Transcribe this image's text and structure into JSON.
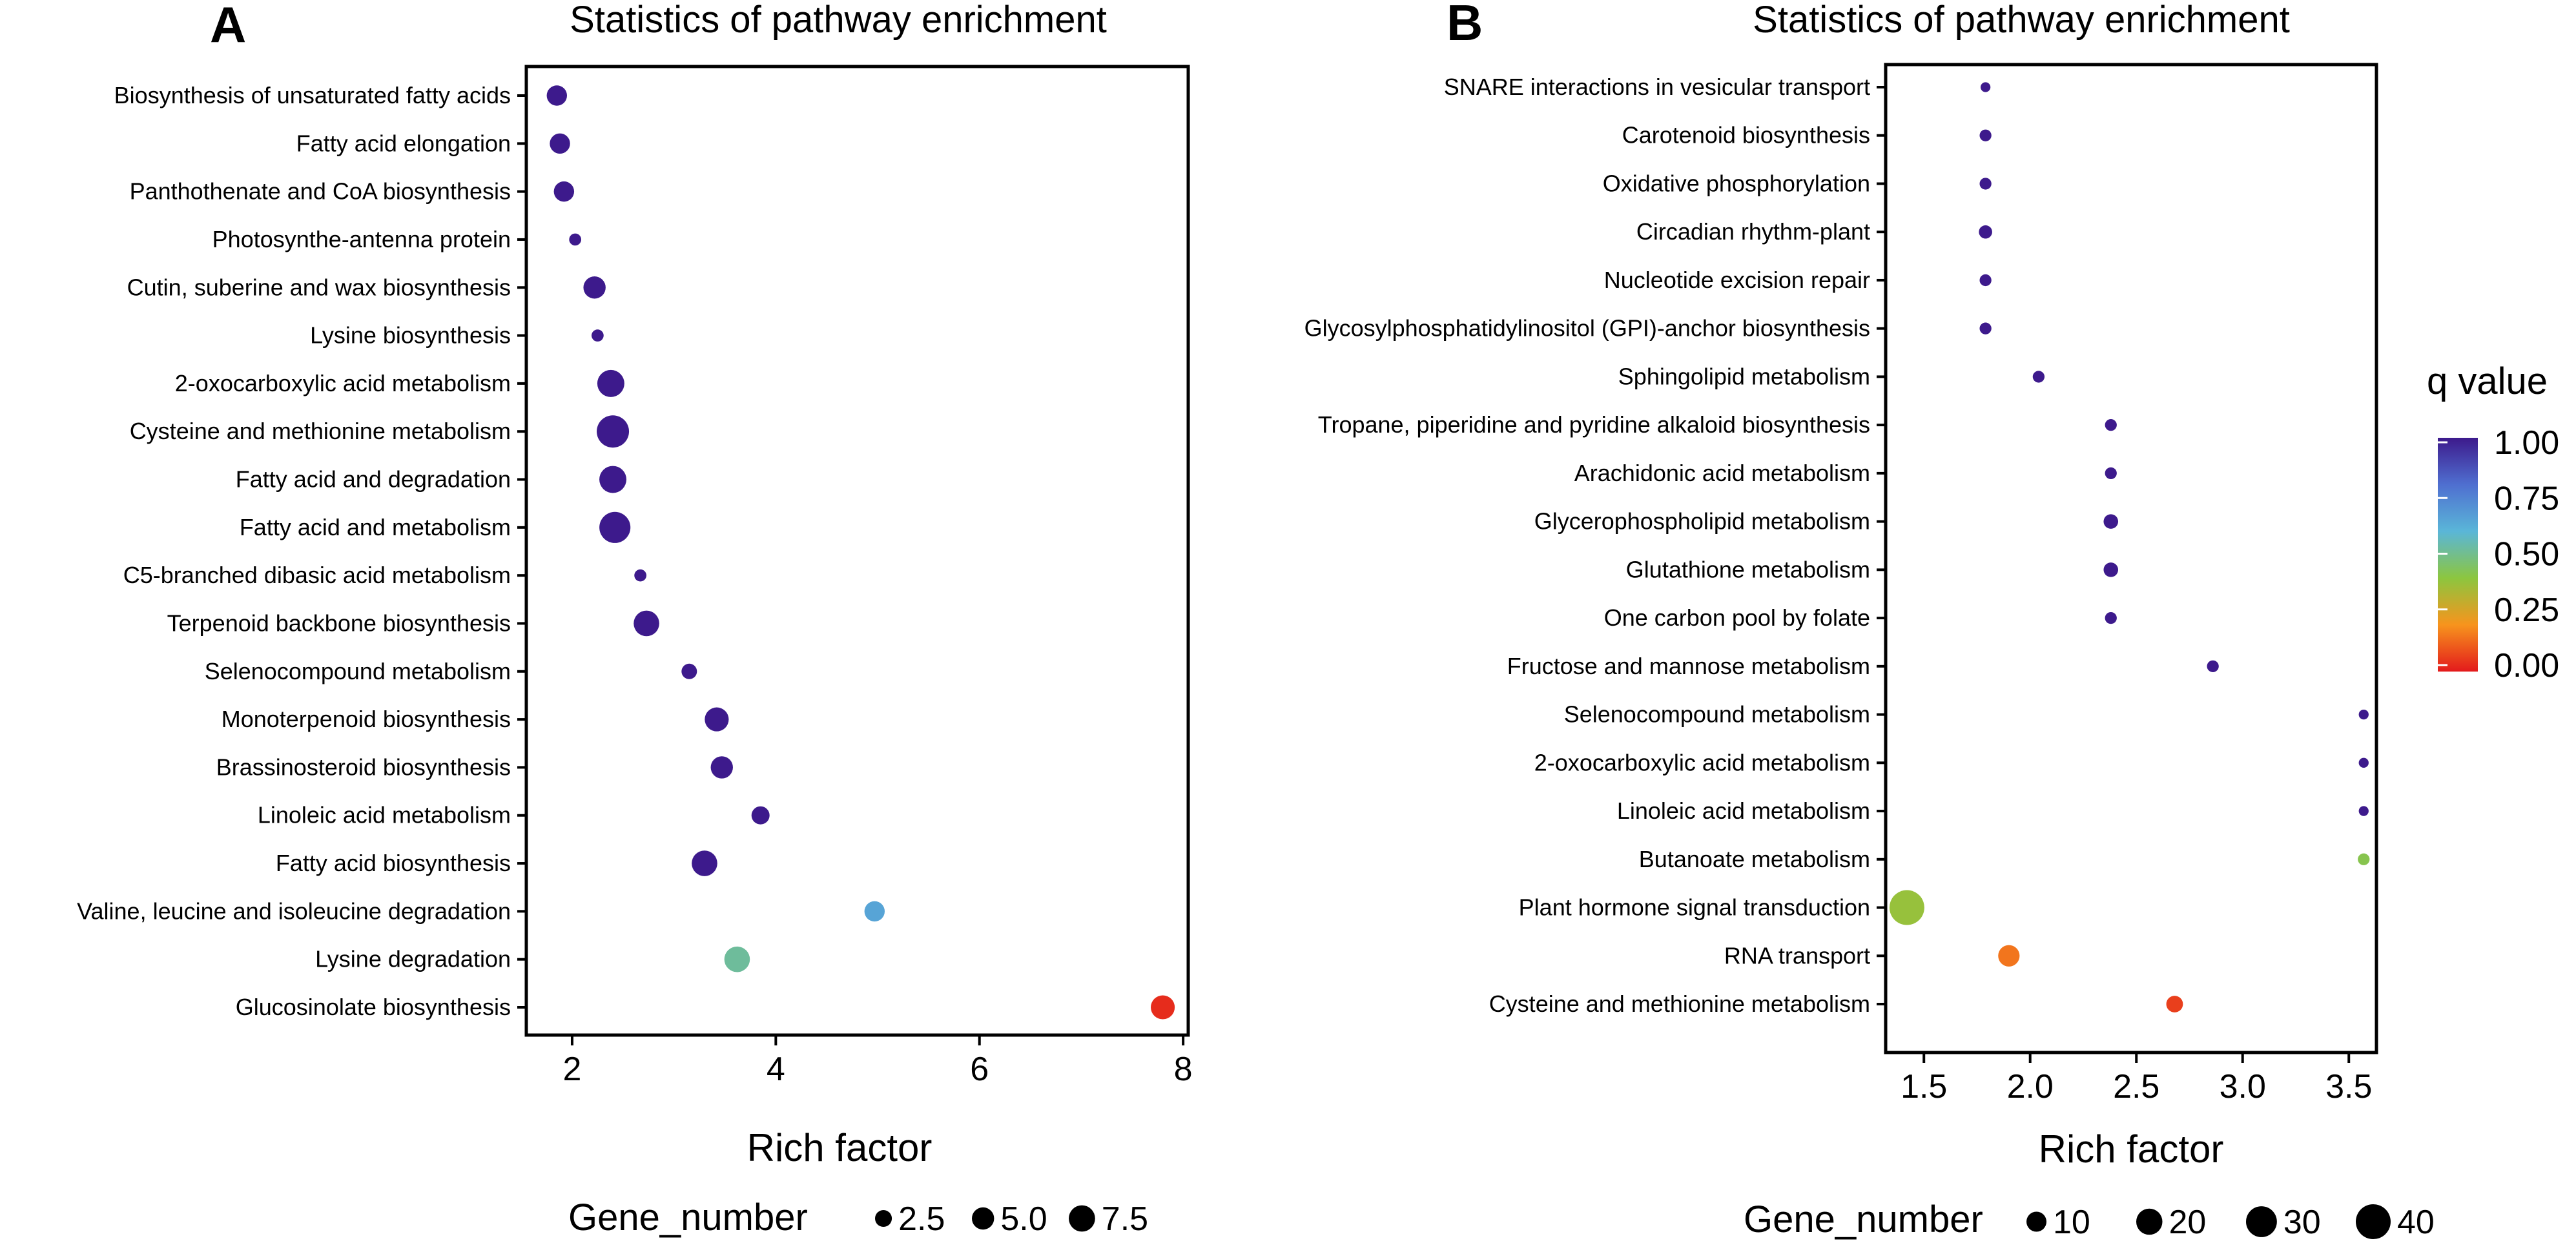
{
  "chart_data": [
    {
      "type": "scatter",
      "panel_letter": "A",
      "title": "Statistics of pathway enrichment",
      "xlabel": "Rich factor",
      "ylabel": "",
      "xlim": [
        1.55,
        8.05
      ],
      "xticks": [
        2,
        4,
        6,
        8
      ],
      "xtick_labels": [
        "2",
        "4",
        "6",
        "8"
      ],
      "grid": false,
      "size_legend": {
        "title": "Gene_number",
        "values": [
          2.5,
          5.0,
          7.5
        ],
        "labels": [
          "2.5",
          "5.0",
          "7.5"
        ]
      },
      "points": [
        {
          "pathway": "Biosynthesis of unsaturated fatty acids",
          "rich_factor": 1.85,
          "gene_number": 4,
          "q_value": 1.0
        },
        {
          "pathway": "Fatty acid elongation",
          "rich_factor": 1.88,
          "gene_number": 4,
          "q_value": 1.0
        },
        {
          "pathway": "Panthothenate and CoA biosynthesis",
          "rich_factor": 1.92,
          "gene_number": 4,
          "q_value": 1.0
        },
        {
          "pathway": "Photosynthe-antenna protein",
          "rich_factor": 2.03,
          "gene_number": 1,
          "q_value": 1.0
        },
        {
          "pathway": "Cutin, suberine and wax biosynthesis",
          "rich_factor": 2.22,
          "gene_number": 5,
          "q_value": 1.0
        },
        {
          "pathway": "Lysine biosynthesis",
          "rich_factor": 2.25,
          "gene_number": 1,
          "q_value": 1.0
        },
        {
          "pathway": "2-oxocarboxylic acid metabolism",
          "rich_factor": 2.38,
          "gene_number": 8,
          "q_value": 1.0
        },
        {
          "pathway": "Cysteine and methionine metabolism",
          "rich_factor": 2.4,
          "gene_number": 12,
          "q_value": 1.0
        },
        {
          "pathway": "Fatty acid and degradation",
          "rich_factor": 2.4,
          "gene_number": 8,
          "q_value": 1.0
        },
        {
          "pathway": "Fatty acid and metabolism",
          "rich_factor": 2.42,
          "gene_number": 11,
          "q_value": 1.0
        },
        {
          "pathway": "C5-branched dibasic acid metabolism",
          "rich_factor": 2.67,
          "gene_number": 1,
          "q_value": 1.0
        },
        {
          "pathway": "Terpenoid backbone biosynthesis",
          "rich_factor": 2.73,
          "gene_number": 7,
          "q_value": 1.0
        },
        {
          "pathway": "Selenocompound metabolism",
          "rich_factor": 3.15,
          "gene_number": 2,
          "q_value": 1.0
        },
        {
          "pathway": "Monoterpenoid biosynthesis",
          "rich_factor": 3.42,
          "gene_number": 6,
          "q_value": 1.0
        },
        {
          "pathway": "Brassinosteroid biosynthesis",
          "rich_factor": 3.47,
          "gene_number": 5,
          "q_value": 1.0
        },
        {
          "pathway": "Linoleic acid metabolism",
          "rich_factor": 3.85,
          "gene_number": 3,
          "q_value": 1.0
        },
        {
          "pathway": "Fatty acid biosynthesis",
          "rich_factor": 3.3,
          "gene_number": 7,
          "q_value": 1.0
        },
        {
          "pathway": "Valine, leucine and isoleucine degradation",
          "rich_factor": 4.97,
          "gene_number": 4,
          "q_value": 0.65
        },
        {
          "pathway": "Lysine degradation",
          "rich_factor": 3.62,
          "gene_number": 7,
          "q_value": 0.52
        },
        {
          "pathway": "Glucosinolate biosynthesis",
          "rich_factor": 7.8,
          "gene_number": 6,
          "q_value": 0.03
        }
      ]
    },
    {
      "type": "scatter",
      "panel_letter": "B",
      "title": "Statistics of pathway enrichment",
      "xlabel": "Rich factor",
      "ylabel": "",
      "xlim": [
        1.32,
        3.63
      ],
      "xticks": [
        1.5,
        2.0,
        2.5,
        3.0,
        3.5
      ],
      "xtick_labels": [
        "1.5",
        "2.0",
        "2.5",
        "3.0",
        "3.5"
      ],
      "grid": false,
      "size_legend": {
        "title": "Gene_number",
        "values": [
          10,
          20,
          30,
          40
        ],
        "labels": [
          "10",
          "20",
          "30",
          "40"
        ]
      },
      "color_legend": {
        "title": "q value",
        "labels": [
          "1.00",
          "0.75",
          "0.50",
          "0.25",
          "0.00"
        ],
        "values": [
          1.0,
          0.75,
          0.5,
          0.25,
          0.0
        ],
        "colors": [
          "#3d1a8c",
          "#4f6fd0",
          "#5ab6d8",
          "#8cc63f",
          "#f7941d",
          "#e31a1c"
        ]
      },
      "points": [
        {
          "pathway": "SNARE interactions in vesicular transport",
          "rich_factor": 1.79,
          "gene_number": 1,
          "q_value": 1.0
        },
        {
          "pathway": "Carotenoid biosynthesis",
          "rich_factor": 1.79,
          "gene_number": 2,
          "q_value": 1.0
        },
        {
          "pathway": "Oxidative phosphorylation",
          "rich_factor": 1.79,
          "gene_number": 2,
          "q_value": 1.0
        },
        {
          "pathway": "Circadian rhythm-plant",
          "rich_factor": 1.79,
          "gene_number": 3,
          "q_value": 1.0
        },
        {
          "pathway": "Nucleotide excision repair",
          "rich_factor": 1.79,
          "gene_number": 2,
          "q_value": 1.0
        },
        {
          "pathway": "Glycosylphosphatidylinositol (GPI)-anchor biosynthesis",
          "rich_factor": 1.79,
          "gene_number": 2,
          "q_value": 1.0
        },
        {
          "pathway": "Sphingolipid metabolism",
          "rich_factor": 2.04,
          "gene_number": 2,
          "q_value": 1.0
        },
        {
          "pathway": "Tropane, piperidine and pyridine alkaloid biosynthesis",
          "rich_factor": 2.38,
          "gene_number": 2,
          "q_value": 1.0
        },
        {
          "pathway": "Arachidonic acid metabolism",
          "rich_factor": 2.38,
          "gene_number": 2,
          "q_value": 1.0
        },
        {
          "pathway": "Glycerophospholipid metabolism",
          "rich_factor": 2.38,
          "gene_number": 4,
          "q_value": 1.0
        },
        {
          "pathway": "Glutathione metabolism",
          "rich_factor": 2.38,
          "gene_number": 4,
          "q_value": 1.0
        },
        {
          "pathway": "One carbon pool by folate",
          "rich_factor": 2.38,
          "gene_number": 2,
          "q_value": 1.0
        },
        {
          "pathway": "Fructose and mannose metabolism",
          "rich_factor": 2.86,
          "gene_number": 2,
          "q_value": 1.0
        },
        {
          "pathway": "Selenocompound metabolism",
          "rich_factor": 3.57,
          "gene_number": 1,
          "q_value": 1.0
        },
        {
          "pathway": "2-oxocarboxylic acid metabolism",
          "rich_factor": 3.57,
          "gene_number": 1,
          "q_value": 1.0
        },
        {
          "pathway": "Linoleic acid metabolism",
          "rich_factor": 3.57,
          "gene_number": 1,
          "q_value": 1.0
        },
        {
          "pathway": "Butanoate metabolism",
          "rich_factor": 3.57,
          "gene_number": 2,
          "q_value": 0.42
        },
        {
          "pathway": "Plant hormone signal transduction",
          "rich_factor": 1.42,
          "gene_number": 40,
          "q_value": 0.38
        },
        {
          "pathway": "RNA transport",
          "rich_factor": 1.9,
          "gene_number": 12,
          "q_value": 0.15
        },
        {
          "pathway": "Cysteine and methionine metabolism",
          "rich_factor": 2.68,
          "gene_number": 6,
          "q_value": 0.06
        }
      ]
    }
  ]
}
